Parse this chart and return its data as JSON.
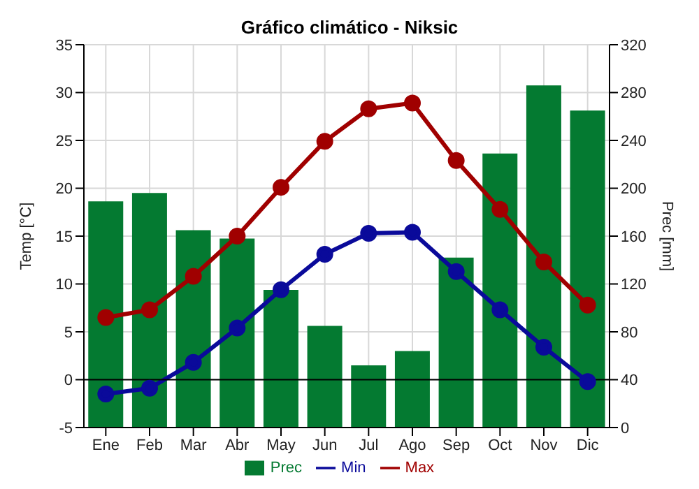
{
  "chart_data": {
    "type": "bar",
    "title": "Gráfico climático - Niksic",
    "ylabel": "Temp [°C]",
    "y2label": "Prec [mm]",
    "categories": [
      "Ene",
      "Feb",
      "Mar",
      "Abr",
      "May",
      "Jun",
      "Jul",
      "Ago",
      "Sep",
      "Oct",
      "Nov",
      "Dic"
    ],
    "series": [
      {
        "name": "Prec",
        "axis": "y2",
        "color": "#047a31",
        "values": [
          189,
          196,
          165,
          158,
          115,
          85,
          52,
          64,
          142,
          229,
          286,
          265
        ]
      },
      {
        "name": "Min",
        "type": "line",
        "color": "#0a0a9a",
        "values": [
          -1.5,
          -0.9,
          1.8,
          5.4,
          9.4,
          13.1,
          15.3,
          15.4,
          11.3,
          7.3,
          3.4,
          -0.2
        ]
      },
      {
        "name": "Max",
        "type": "line",
        "color": "#a00000",
        "values": [
          6.5,
          7.3,
          10.8,
          15.0,
          20.1,
          24.9,
          28.3,
          28.9,
          22.9,
          17.8,
          12.3,
          7.8
        ]
      }
    ],
    "ylim": [
      -5,
      35
    ],
    "yticks": [
      -5,
      0,
      5,
      10,
      15,
      20,
      25,
      30,
      35
    ],
    "y2lim": [
      0,
      320
    ],
    "y2ticks": [
      0,
      40,
      80,
      120,
      160,
      200,
      240,
      280,
      320
    ],
    "ref_lines": [
      {
        "axis": "y",
        "value": 0,
        "color": "#000000"
      }
    ],
    "grid": true,
    "legend": "bottom",
    "marker": "circle",
    "line_style": "solid"
  }
}
